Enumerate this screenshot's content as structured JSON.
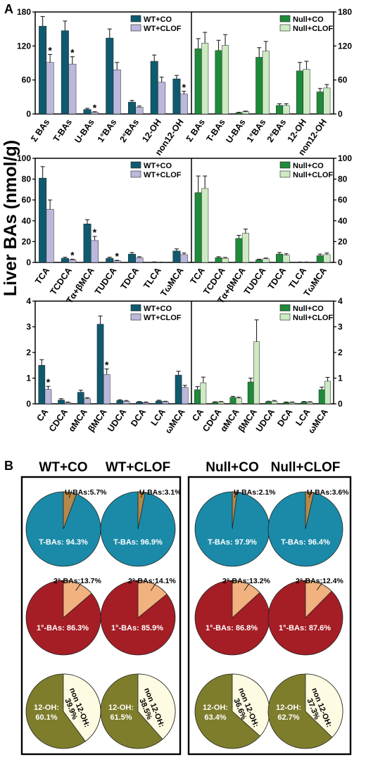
{
  "figure": {
    "panel_a": "A",
    "panel_b": "B",
    "ylabel": "Liver BAs (nmol/g)"
  },
  "colors": {
    "wt_co": "#0f5a6e",
    "wt_clof": "#bbb8dc",
    "null_co": "#1e8a3a",
    "null_clof": "#cdeac3",
    "pie_tbas": "#1a8aa8",
    "pie_ubas": "#b6884a",
    "pie_1bas": "#a51d25",
    "pie_2bas": "#f1b27f",
    "pie_12oh": "#7d7d2c",
    "pie_non12": "#fdfbe2"
  },
  "chart_data": [
    {
      "type": "bar",
      "panel": "A-top",
      "categories": [
        "Σ BAs",
        "T-BAs",
        "U-BAs",
        "1°BAs",
        "2°BAs",
        "12-OH",
        "non12-OH"
      ],
      "ylim": [
        0,
        180
      ],
      "yticks": [
        "0",
        "60",
        "120",
        "180"
      ],
      "wt_legend": [
        "WT+CO",
        "WT+CLOF"
      ],
      "null_legend": [
        "Null+CO",
        "Null+CLOF"
      ],
      "wt_series": [
        {
          "name": "WT+CO",
          "values": [
            155,
            147,
            8,
            134,
            21,
            93,
            62
          ],
          "errors": [
            17,
            17,
            2,
            16,
            3,
            11,
            6
          ]
        },
        {
          "name": "WT+CLOF",
          "values": [
            91,
            88,
            3,
            78,
            12,
            56,
            35
          ],
          "errors": [
            14,
            13,
            1,
            13,
            2,
            9,
            5
          ]
        }
      ],
      "null_series": [
        {
          "name": "Null+CO",
          "values": [
            115,
            112,
            2,
            100,
            15,
            76,
            39
          ],
          "errors": [
            18,
            18,
            1,
            17,
            3,
            15,
            6
          ]
        },
        {
          "name": "Null+CLOF",
          "values": [
            125,
            121,
            4,
            111,
            15,
            79,
            46
          ],
          "errors": [
            19,
            19,
            1,
            17,
            3,
            14,
            6
          ]
        }
      ],
      "wt_sig": [
        1,
        1,
        1,
        0,
        0,
        0,
        1
      ]
    },
    {
      "type": "bar",
      "panel": "A-middle",
      "categories": [
        "TCA",
        "TCDCA",
        "Tα+βMCA",
        "TUDCA",
        "TDCA",
        "TLCA",
        "TωMCA"
      ],
      "ylim": [
        0,
        100
      ],
      "yticks": [
        "0",
        "20",
        "40",
        "60",
        "80",
        "100"
      ],
      "wt_legend": [
        "WT+CO",
        "WT+CLOF"
      ],
      "null_legend": [
        "Null+CO",
        "Null+CLOF"
      ],
      "wt_series": [
        {
          "name": "WT+CO",
          "values": [
            81,
            4,
            37,
            4,
            8,
            0.3,
            11
          ],
          "errors": [
            11,
            1,
            4,
            1,
            1.5,
            0.2,
            2
          ]
        },
        {
          "name": "WT+CLOF",
          "values": [
            51,
            2.5,
            21,
            1.5,
            4.5,
            0.2,
            7.5
          ],
          "errors": [
            9,
            0.6,
            4,
            0.5,
            1,
            0.1,
            1.5
          ]
        }
      ],
      "null_series": [
        {
          "name": "Null+CO",
          "values": [
            67,
            4.5,
            23,
            2.5,
            8,
            0.3,
            6.5
          ],
          "errors": [
            16,
            1,
            3,
            0.6,
            1.5,
            0.1,
            1.5
          ]
        },
        {
          "name": "Null+CLOF",
          "values": [
            71,
            4,
            28,
            3.5,
            7,
            0.3,
            7.5
          ],
          "errors": [
            12,
            0.8,
            4,
            0.7,
            1.3,
            0.1,
            1.5
          ]
        }
      ],
      "wt_sig": [
        0,
        1,
        1,
        1,
        0,
        0,
        0
      ]
    },
    {
      "type": "bar",
      "panel": "A-bottom",
      "categories": [
        "CA",
        "CDCA",
        "αMCA",
        "βMCA",
        "UDCA",
        "DCA",
        "LCA",
        "ωMCA"
      ],
      "ylim": [
        0,
        4
      ],
      "yticks": [
        "0",
        "1",
        "2",
        "3",
        "4"
      ],
      "wt_legend": [
        "WT+CO",
        "WT+CLOF"
      ],
      "null_legend": [
        "Null+CO",
        "Null+CLOF"
      ],
      "wt_series": [
        {
          "name": "WT+CO",
          "values": [
            1.5,
            0.15,
            0.45,
            3.1,
            0.13,
            0.07,
            0.11,
            1.12
          ],
          "errors": [
            0.22,
            0.05,
            0.08,
            0.32,
            0.03,
            0.02,
            0.03,
            0.15
          ]
        },
        {
          "name": "WT+CLOF",
          "values": [
            0.56,
            0.05,
            0.2,
            1.14,
            0.1,
            0.05,
            0.08,
            0.64
          ],
          "errors": [
            0.12,
            0.02,
            0.04,
            0.22,
            0.03,
            0.02,
            0.02,
            0.08
          ]
        }
      ],
      "null_series": [
        {
          "name": "Null+CO",
          "values": [
            0.55,
            0.06,
            0.25,
            0.85,
            0.08,
            0.05,
            0.07,
            0.55
          ],
          "errors": [
            0.12,
            0.02,
            0.04,
            0.15,
            0.02,
            0.02,
            0.02,
            0.1
          ]
        },
        {
          "name": "Null+CLOF",
          "values": [
            0.82,
            0.07,
            0.22,
            2.42,
            0.1,
            0.05,
            0.06,
            0.88
          ],
          "errors": [
            0.22,
            0.02,
            0.04,
            0.85,
            0.03,
            0.02,
            0.02,
            0.15
          ]
        }
      ],
      "wt_sig": [
        1,
        0,
        0,
        1,
        0,
        0,
        0,
        0
      ]
    }
  ],
  "pies": {
    "groups": [
      "WT+CO",
      "WT+CLOF",
      "Null+CO",
      "Null+CLOF"
    ],
    "rows": [
      {
        "kind": "tbas",
        "slices": [
          {
            "small": 5.7,
            "small_label": "U-BAs:5.7%",
            "big_label": "T-BAs: 94.3%"
          },
          {
            "small": 3.1,
            "small_label": "U-BAs:3.1%",
            "big_label": "T-BAs: 96.9%"
          },
          {
            "small": 2.1,
            "small_label": "U-BAs:2.1%",
            "big_label": "T-BAs: 97.9%"
          },
          {
            "small": 3.6,
            "small_label": "U-BAs:3.6%",
            "big_label": "T-BAs: 96.4%"
          }
        ]
      },
      {
        "kind": "primary",
        "slices": [
          {
            "small": 13.7,
            "small_label": "2°-BAs:13.7%",
            "big_label": "1°-BAs: 86.3%"
          },
          {
            "small": 14.1,
            "small_label": "2°-BAs:14.1%",
            "big_label": "1°-BAs: 85.9%"
          },
          {
            "small": 13.2,
            "small_label": "2°-BAs:13.2%",
            "big_label": "1°-BAs: 86.8%"
          },
          {
            "small": 12.4,
            "small_label": "2°-BAs:12.4%",
            "big_label": "1°-BAs: 87.6%"
          }
        ]
      },
      {
        "kind": "oh12",
        "slices": [
          {
            "small": 39.9,
            "small_l1": "non 12-OH:",
            "small_l2": "39.9%",
            "big_l1": "12-OH:",
            "big_l2": "60.1%"
          },
          {
            "small": 38.5,
            "small_l1": "non 12-OH:",
            "small_l2": "38.5%",
            "big_l1": "12-OH:",
            "big_l2": "61.5%"
          },
          {
            "small": 36.6,
            "small_l1": "non 12-OH:",
            "small_l2": "36.6%",
            "big_l1": "12-OH:",
            "big_l2": "63.4%"
          },
          {
            "small": 37.3,
            "small_l1": "non 12-OH:",
            "small_l2": "37.3%",
            "big_l1": "12-OH:",
            "big_l2": "62.7%"
          }
        ]
      }
    ]
  }
}
